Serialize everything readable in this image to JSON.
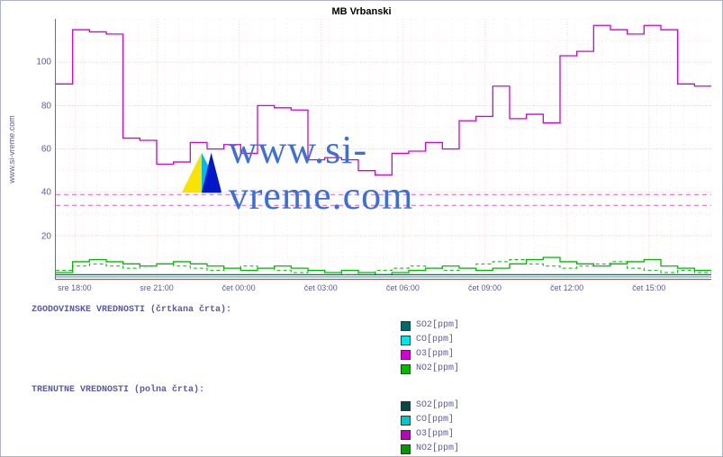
{
  "title": "MB Vrbanski",
  "y_axis_label": "www.si-vreme.com",
  "watermark_text": "www.si-vreme.com",
  "chart": {
    "type": "line-step",
    "background_color": "#ffffff",
    "grid_color": "#f7c8c8",
    "axis_color": "#cc4a4a",
    "text_color": "#5a5aa8",
    "y": {
      "min": 0,
      "max": 120,
      "ticks": [
        20,
        40,
        60,
        80,
        100
      ]
    },
    "x": {
      "labels": [
        "sre 18:00",
        "sre 21:00",
        "čet 00:00",
        "čet 03:00",
        "čet 06:00",
        "čet 09:00",
        "čet 12:00",
        "čet 15:00"
      ],
      "positions_pct": [
        3,
        15.5,
        28,
        40.5,
        53,
        65.5,
        78,
        90.5
      ]
    },
    "dashed_h_lines": {
      "color": "#d85ad8",
      "values": [
        34,
        39
      ]
    },
    "series_current": {
      "O3": {
        "color": "#d600d6",
        "type": "step",
        "y": [
          90,
          115,
          114,
          113,
          65,
          64,
          53,
          54,
          63,
          60,
          62,
          58,
          80,
          79,
          78,
          55,
          56,
          55,
          50,
          48,
          58,
          59,
          63,
          60,
          73,
          75,
          89,
          74,
          76,
          72,
          103,
          105,
          117,
          115,
          113,
          117,
          115,
          90,
          89
        ]
      },
      "NO2": {
        "color": "#00ba00",
        "type": "step",
        "y": [
          3,
          8,
          9,
          8,
          7,
          6,
          7,
          8,
          7,
          6,
          5,
          4,
          5,
          6,
          5,
          4,
          3,
          4,
          3,
          2,
          3,
          4,
          5,
          6,
          5,
          4,
          5,
          7,
          9,
          10,
          8,
          7,
          6,
          7,
          8,
          9,
          6,
          5,
          4
        ]
      },
      "SO2": {
        "color": "#006a6a",
        "type": "step",
        "y": [
          2,
          2,
          2,
          2,
          2,
          2,
          2,
          2,
          2,
          2,
          2,
          2,
          2,
          2,
          2,
          2,
          2,
          2,
          2,
          2,
          2,
          2,
          2,
          2,
          2,
          2,
          2,
          2,
          2,
          2,
          2,
          2,
          2,
          2,
          2,
          2,
          2,
          2,
          2
        ]
      },
      "CO": {
        "color": "#00e6e6",
        "type": "step",
        "y": [
          1,
          1,
          1,
          1,
          1,
          1,
          1,
          1,
          1,
          1,
          1,
          1,
          1,
          1,
          1,
          1,
          1,
          1,
          1,
          1,
          1,
          1,
          1,
          1,
          1,
          1,
          1,
          1,
          1,
          1,
          1,
          1,
          1,
          1,
          1,
          1,
          1,
          1,
          1
        ]
      }
    },
    "series_historical": {
      "NO2": {
        "color": "#00ba00",
        "type": "dashed",
        "y": [
          4,
          6,
          7,
          6,
          5,
          6,
          7,
          6,
          5,
          4,
          5,
          6,
          5,
          4,
          3,
          4,
          3,
          2,
          3,
          4,
          5,
          6,
          5,
          4,
          5,
          7,
          8,
          9,
          7,
          6,
          5,
          6,
          7,
          8,
          5,
          4,
          3,
          4,
          3
        ]
      }
    }
  },
  "legend": {
    "historical_title": "ZGODOVINSKE VREDNOSTI (črtkana črta):",
    "current_title": "TRENUTNE VREDNOSTI (polna črta):",
    "items_historical": [
      {
        "label": "SO2[ppm]",
        "color": "#006a6a"
      },
      {
        "label": "CO[ppm]",
        "color": "#00e6e6"
      },
      {
        "label": "O3[ppm]",
        "color": "#d600d6"
      },
      {
        "label": "NO2[ppm]",
        "color": "#00ba00"
      }
    ],
    "items_current": [
      {
        "label": "SO2[ppm]",
        "color": "#004a4a"
      },
      {
        "label": "CO[ppm]",
        "color": "#00c8c8"
      },
      {
        "label": "O3[ppm]",
        "color": "#c200c2"
      },
      {
        "label": "NO2[ppm]",
        "color": "#009a00"
      }
    ]
  }
}
